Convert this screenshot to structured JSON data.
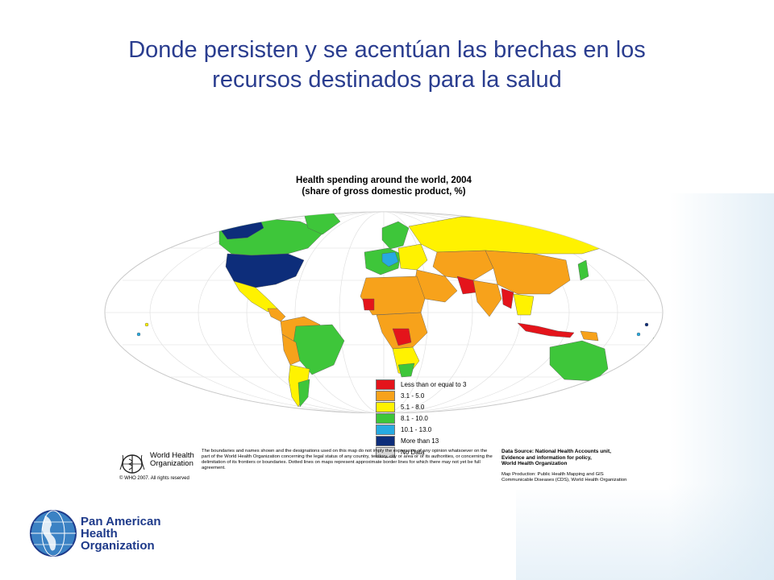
{
  "slide": {
    "title_line1": "Donde persisten y se acentúan las brechas en los",
    "title_line2": "recursos destinados para la salud"
  },
  "map": {
    "title_line1": "Health spending around the world, 2004",
    "title_line2": "(share of gross domestic product, %)",
    "legend": [
      {
        "label": "Less than or equal to 3",
        "color": "#e4141b"
      },
      {
        "label": "3.1 - 5.0",
        "color": "#f7a21b"
      },
      {
        "label": "5.1 - 8.0",
        "color": "#fff200"
      },
      {
        "label": "8.1 - 10.0",
        "color": "#3ec63a"
      },
      {
        "label": "10.1 - 13.0",
        "color": "#27aae1"
      },
      {
        "label": "More than 13",
        "color": "#0d2d7a"
      },
      {
        "label": "No Data",
        "color": "#d9d9d9"
      }
    ]
  },
  "footer": {
    "who_name_line1": "World Health",
    "who_name_line2": "Organization",
    "who_copyright": "© WHO 2007. All rights reserved",
    "disclaimer": "The boundaries and names shown and the designations used on this map do not imply the expression of any opinion whatsoever on the part of the World Health Organization concerning the legal status of any country, territory, city or area or of its authorities, or concerning the delimitation of its frontiers or boundaries. Dotted lines on maps represent approximate border lines for which there may not yet be full agreement.",
    "data_source_line1": "Data Source: National Health Accounts unit,",
    "data_source_line2": "Evidence and information for policy,",
    "data_source_line3": "World Health Organization",
    "production_line1": "Map Production: Public Health Mapping and GIS",
    "production_line2": "Communicable Diseases (CDS), World Health Organization"
  },
  "paho": {
    "line1": "Pan American",
    "line2": "Health",
    "line3": "Organization"
  }
}
